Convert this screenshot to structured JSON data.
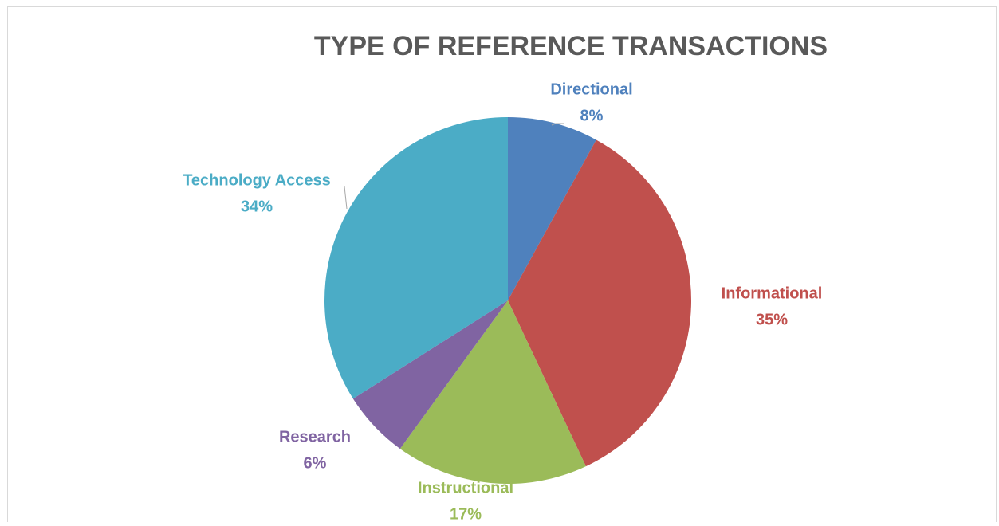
{
  "chart_data": {
    "type": "pie",
    "title": "TYPE OF REFERENCE TRANSACTIONS",
    "categories": [
      "Directional",
      "Informational",
      "Instructional",
      "Research",
      "Technology Access"
    ],
    "values": [
      8,
      35,
      17,
      6,
      34
    ],
    "value_labels": [
      "8%",
      "35%",
      "17%",
      "6%",
      "34%"
    ],
    "colors": [
      "#4f81bd",
      "#c0504d",
      "#9bbb59",
      "#8064a2",
      "#4bacc6"
    ]
  }
}
